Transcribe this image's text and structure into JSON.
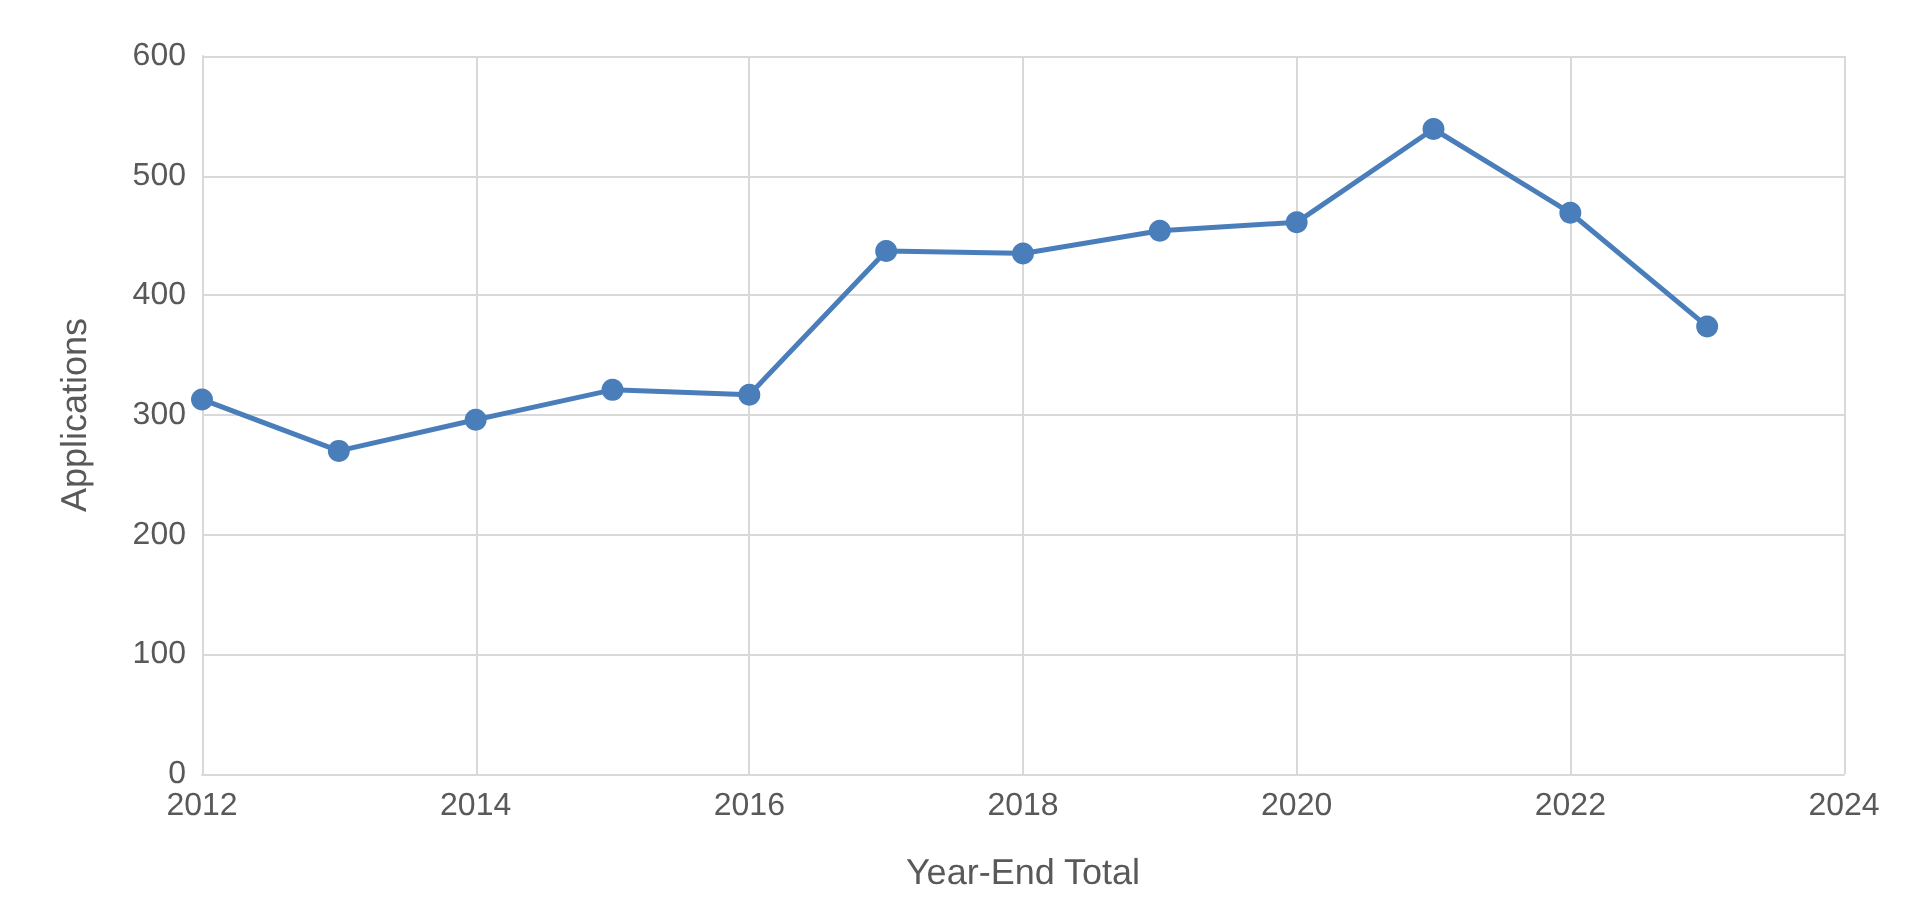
{
  "chart_data": {
    "type": "line",
    "xlabel": "Year-End Total",
    "ylabel": "Applications",
    "x": [
      2012,
      2013,
      2014,
      2015,
      2016,
      2017,
      2018,
      2019,
      2020,
      2021,
      2022,
      2023
    ],
    "series": [
      {
        "color": "#4a7ebb",
        "values": [
          313,
          270,
          296,
          321,
          317,
          437,
          435,
          454,
          461,
          539,
          469,
          374
        ]
      }
    ],
    "xlim": [
      2012,
      2024
    ],
    "xticks": [
      2012,
      2014,
      2016,
      2018,
      2020,
      2022,
      2024
    ],
    "ylim": [
      0,
      600
    ],
    "yticks": [
      0,
      100,
      200,
      300,
      400,
      500,
      600
    ],
    "grid": true,
    "marker": "circle",
    "line_style": "solid"
  }
}
